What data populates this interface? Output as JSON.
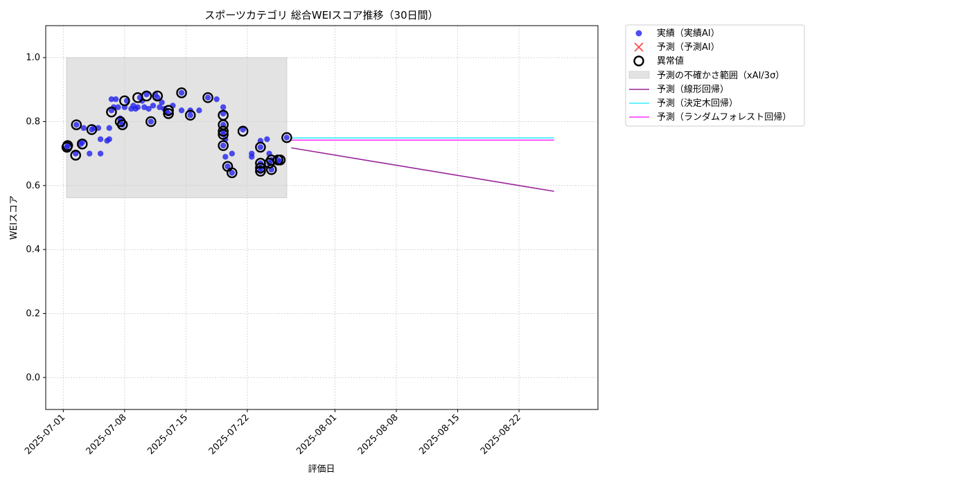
{
  "chart_data": {
    "type": "scatter",
    "title": "スポーツカテゴリ 総合WEIスコア推移（30日間）",
    "xlabel": "評価日",
    "ylabel": "WEIスコア",
    "ylim": [
      -0.1,
      1.1
    ],
    "xlim": [
      "2025-06-29",
      "2025-08-31"
    ],
    "x_ticks": [
      "2025-07-01",
      "2025-07-08",
      "2025-07-15",
      "2025-07-22",
      "2025-08-01",
      "2025-08-08",
      "2025-08-15",
      "2025-08-22"
    ],
    "y_ticks": [
      0.0,
      0.2,
      0.4,
      0.6,
      0.8,
      1.0
    ],
    "y_tick_labels": [
      "0.0",
      "0.2",
      "0.4",
      "0.6",
      "0.8",
      "1.0"
    ],
    "grid": true,
    "legend_position": "outside-right",
    "uncertainty_band": {
      "name": "予測の不確かさ範囲（xAI/3σ）",
      "x_start": "2025-07-01 09:00",
      "x_end": "2025-07-26 12:00",
      "y_low": 0.562,
      "y_high": 1.0,
      "color": "#e3e3e3"
    },
    "series": [
      {
        "name": "実績（実績AI）",
        "kind": "scatter",
        "color": "#2222ee",
        "points": [
          [
            "2025-07-01 10:00",
            0.72
          ],
          [
            "2025-07-01 12:00",
            0.725
          ],
          [
            "2025-07-02 10:00",
            0.7
          ],
          [
            "2025-07-02 12:00",
            0.79
          ],
          [
            "2025-07-03 00:00",
            0.73
          ],
          [
            "2025-07-03 04:00",
            0.735
          ],
          [
            "2025-07-03 08:00",
            0.78
          ],
          [
            "2025-07-04 00:00",
            0.7
          ],
          [
            "2025-07-04 06:00",
            0.775
          ],
          [
            "2025-07-04 12:00",
            0.78
          ],
          [
            "2025-07-05 00:00",
            0.78
          ],
          [
            "2025-07-05 06:00",
            0.745
          ],
          [
            "2025-07-05 06:00",
            0.7
          ],
          [
            "2025-07-06 00:00",
            0.74
          ],
          [
            "2025-07-06 06:00",
            0.745
          ],
          [
            "2025-07-06 06:00",
            0.78
          ],
          [
            "2025-07-06 12:00",
            0.835
          ],
          [
            "2025-07-06 12:00",
            0.87
          ],
          [
            "2025-07-06 18:00",
            0.845
          ],
          [
            "2025-07-07 00:00",
            0.87
          ],
          [
            "2025-07-07 06:00",
            0.845
          ],
          [
            "2025-07-07 12:00",
            0.81
          ],
          [
            "2025-07-07 12:00",
            0.8
          ],
          [
            "2025-07-07 18:00",
            0.79
          ],
          [
            "2025-07-08 00:00",
            0.845
          ],
          [
            "2025-07-08 06:00",
            0.865
          ],
          [
            "2025-07-08 18:00",
            0.84
          ],
          [
            "2025-07-09 00:00",
            0.85
          ],
          [
            "2025-07-09 06:00",
            0.84
          ],
          [
            "2025-07-09 12:00",
            0.845
          ],
          [
            "2025-07-09 18:00",
            0.875
          ],
          [
            "2025-07-10 00:00",
            0.865
          ],
          [
            "2025-07-10 06:00",
            0.845
          ],
          [
            "2025-07-10 12:00",
            0.885
          ],
          [
            "2025-07-10 18:00",
            0.84
          ],
          [
            "2025-07-11 00:00",
            0.8
          ],
          [
            "2025-07-11 06:00",
            0.85
          ],
          [
            "2025-07-11 12:00",
            0.885
          ],
          [
            "2025-07-11 18:00",
            0.875
          ],
          [
            "2025-07-12 00:00",
            0.845
          ],
          [
            "2025-07-12 06:00",
            0.86
          ],
          [
            "2025-07-12 12:00",
            0.84
          ],
          [
            "2025-07-12 18:00",
            0.835
          ],
          [
            "2025-07-13 00:00",
            0.825
          ],
          [
            "2025-07-13 12:00",
            0.85
          ],
          [
            "2025-07-14 12:00",
            0.89
          ],
          [
            "2025-07-14 12:00",
            0.835
          ],
          [
            "2025-07-15 12:00",
            0.82
          ],
          [
            "2025-07-15 12:00",
            0.835
          ],
          [
            "2025-07-16 12:00",
            0.835
          ],
          [
            "2025-07-17 12:00",
            0.875
          ],
          [
            "2025-07-18 12:00",
            0.87
          ],
          [
            "2025-07-19 06:00",
            0.845
          ],
          [
            "2025-07-19 06:00",
            0.825
          ],
          [
            "2025-07-19 06:00",
            0.79
          ],
          [
            "2025-07-19 06:00",
            0.77
          ],
          [
            "2025-07-19 06:00",
            0.76
          ],
          [
            "2025-07-19 06:00",
            0.725
          ],
          [
            "2025-07-19 12:00",
            0.745
          ],
          [
            "2025-07-19 12:00",
            0.69
          ],
          [
            "2025-07-19 18:00",
            0.66
          ],
          [
            "2025-07-20 06:00",
            0.64
          ],
          [
            "2025-07-20 06:00",
            0.7
          ],
          [
            "2025-07-21 12:00",
            0.775
          ],
          [
            "2025-07-22 12:00",
            0.7
          ],
          [
            "2025-07-22 12:00",
            0.69
          ],
          [
            "2025-07-23 12:00",
            0.74
          ],
          [
            "2025-07-23 12:00",
            0.72
          ],
          [
            "2025-07-23 12:00",
            0.67
          ],
          [
            "2025-07-23 12:00",
            0.655
          ],
          [
            "2025-07-23 12:00",
            0.645
          ],
          [
            "2025-07-24 06:00",
            0.745
          ],
          [
            "2025-07-24 12:00",
            0.7
          ],
          [
            "2025-07-24 12:00",
            0.67
          ],
          [
            "2025-07-24 18:00",
            0.65
          ],
          [
            "2025-07-24 18:00",
            0.68
          ],
          [
            "2025-07-25 12:00",
            0.68
          ],
          [
            "2025-07-25 18:00",
            0.675
          ],
          [
            "2025-07-26 12:00",
            0.75
          ]
        ]
      },
      {
        "name": "予測（予測AI）",
        "kind": "scatter-x",
        "color": "#ff4444",
        "points": []
      },
      {
        "name": "異常値",
        "kind": "ring",
        "color": "#000000",
        "points": [
          [
            "2025-07-01 10:00",
            0.72
          ],
          [
            "2025-07-01 12:00",
            0.725
          ],
          [
            "2025-07-02 10:00",
            0.695
          ],
          [
            "2025-07-02 12:00",
            0.79
          ],
          [
            "2025-07-03 04:00",
            0.73
          ],
          [
            "2025-07-04 06:00",
            0.775
          ],
          [
            "2025-07-06 12:00",
            0.83
          ],
          [
            "2025-07-07 12:00",
            0.8
          ],
          [
            "2025-07-07 18:00",
            0.79
          ],
          [
            "2025-07-08 00:00",
            0.865
          ],
          [
            "2025-07-09 12:00",
            0.875
          ],
          [
            "2025-07-10 12:00",
            0.88
          ],
          [
            "2025-07-11 00:00",
            0.8
          ],
          [
            "2025-07-11 18:00",
            0.88
          ],
          [
            "2025-07-13 00:00",
            0.825
          ],
          [
            "2025-07-13 00:00",
            0.835
          ],
          [
            "2025-07-14 12:00",
            0.89
          ],
          [
            "2025-07-15 12:00",
            0.82
          ],
          [
            "2025-07-17 12:00",
            0.875
          ],
          [
            "2025-07-19 06:00",
            0.82
          ],
          [
            "2025-07-19 06:00",
            0.79
          ],
          [
            "2025-07-19 06:00",
            0.77
          ],
          [
            "2025-07-19 06:00",
            0.76
          ],
          [
            "2025-07-19 06:00",
            0.725
          ],
          [
            "2025-07-19 18:00",
            0.66
          ],
          [
            "2025-07-20 06:00",
            0.64
          ],
          [
            "2025-07-21 12:00",
            0.77
          ],
          [
            "2025-07-23 12:00",
            0.72
          ],
          [
            "2025-07-23 12:00",
            0.67
          ],
          [
            "2025-07-23 12:00",
            0.655
          ],
          [
            "2025-07-23 12:00",
            0.645
          ],
          [
            "2025-07-24 12:00",
            0.67
          ],
          [
            "2025-07-24 18:00",
            0.65
          ],
          [
            "2025-07-24 18:00",
            0.68
          ],
          [
            "2025-07-25 12:00",
            0.68
          ],
          [
            "2025-07-25 18:00",
            0.68
          ],
          [
            "2025-07-26 12:00",
            0.75
          ]
        ]
      },
      {
        "name": "予測（線形回帰）",
        "kind": "line",
        "color": "#992299",
        "points": [
          [
            "2025-07-27",
            0.718
          ],
          [
            "2025-08-26",
            0.582
          ]
        ]
      },
      {
        "name": "予測（決定木回帰）",
        "kind": "line",
        "color": "#33eeff",
        "points": [
          [
            "2025-07-27",
            0.749
          ],
          [
            "2025-08-26",
            0.749
          ]
        ]
      },
      {
        "name": "予測（ランダムフォレスト回帰）",
        "kind": "line",
        "color": "#ff33ff",
        "points": [
          [
            "2025-07-27",
            0.742
          ],
          [
            "2025-08-26",
            0.742
          ]
        ]
      }
    ]
  }
}
